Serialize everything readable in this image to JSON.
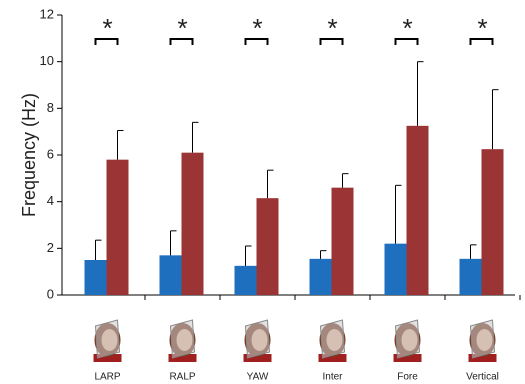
{
  "chart_data": {
    "type": "bar",
    "y_label": "Frequency (Hz)",
    "categories": [
      "LARP",
      "RALP",
      "YAW",
      "Inter",
      "Fore",
      "Vertical"
    ],
    "series": [
      {
        "color": "#1f6fbf",
        "values": [
          1.5,
          1.7,
          1.25,
          1.55,
          2.2,
          1.55
        ],
        "errors": [
          0.85,
          1.05,
          0.85,
          0.35,
          2.5,
          0.6
        ]
      },
      {
        "color": "#9b3535",
        "values": [
          5.8,
          6.1,
          4.15,
          4.6,
          7.25,
          6.25
        ],
        "errors": [
          1.25,
          1.3,
          1.2,
          0.6,
          2.75,
          2.55
        ]
      }
    ],
    "annotations": [
      "*",
      "*",
      "*",
      "*",
      "*",
      "*"
    ],
    "ylim": [
      0,
      12
    ],
    "yticks": [
      0,
      2,
      4,
      6,
      8,
      10,
      12
    ],
    "grid": false
  }
}
